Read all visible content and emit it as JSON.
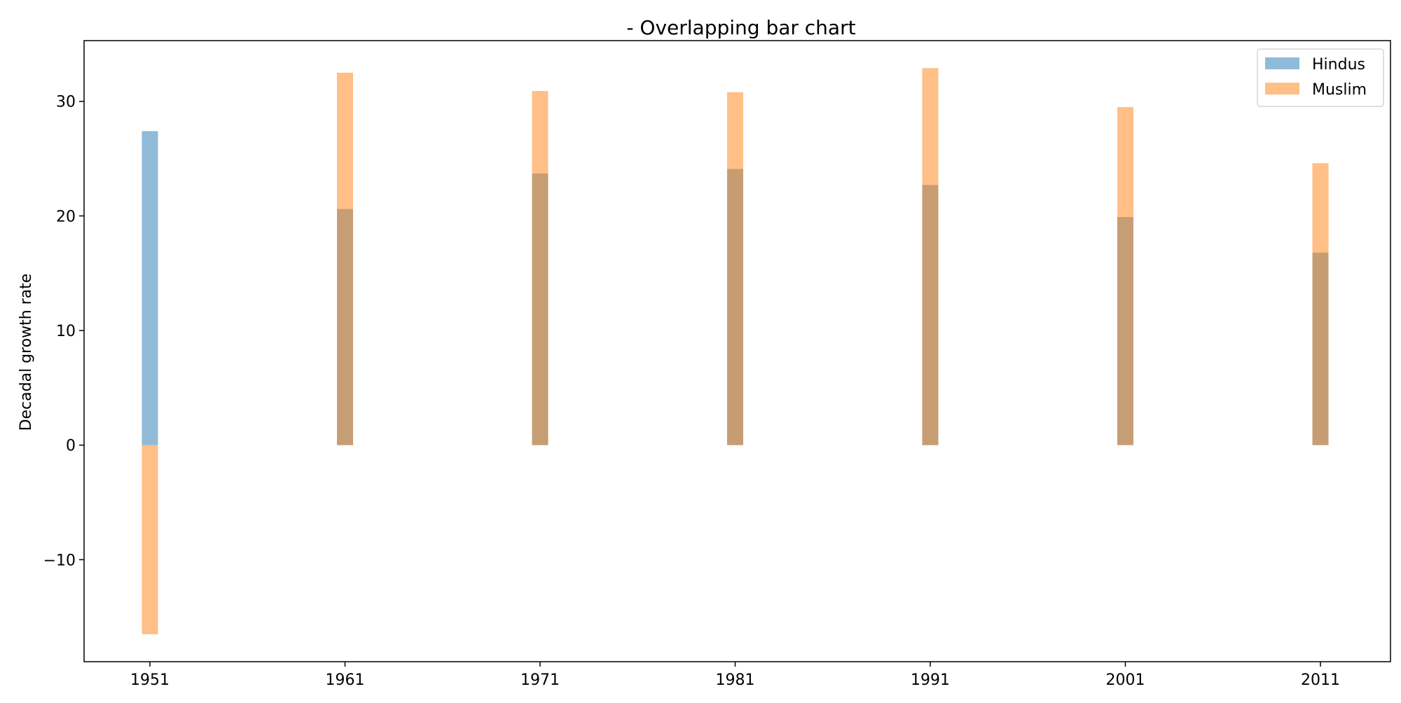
{
  "chart_data": {
    "type": "bar",
    "title": "- Overlapping bar chart",
    "xlabel": "",
    "ylabel": "Decadal growth rate",
    "categories": [
      "1951",
      "1961",
      "1971",
      "1981",
      "1991",
      "2001",
      "2011"
    ],
    "series": [
      {
        "name": "Hindus",
        "color": "#1f77b4",
        "opacity": 0.5,
        "values": [
          27.4,
          20.6,
          23.7,
          24.1,
          22.7,
          19.9,
          16.8
        ]
      },
      {
        "name": "Muslim",
        "color": "#ff7f0e",
        "opacity": 0.5,
        "values": [
          -16.5,
          32.5,
          30.9,
          30.8,
          32.9,
          29.5,
          24.6
        ]
      }
    ],
    "ylim": [
      -18.9,
      35.3
    ],
    "yticks": [
      -10,
      0,
      10,
      20,
      30
    ],
    "ytick_labels": [
      "−10",
      "0",
      "10",
      "20",
      "30"
    ],
    "grid": false,
    "legend_position": "top-right"
  }
}
